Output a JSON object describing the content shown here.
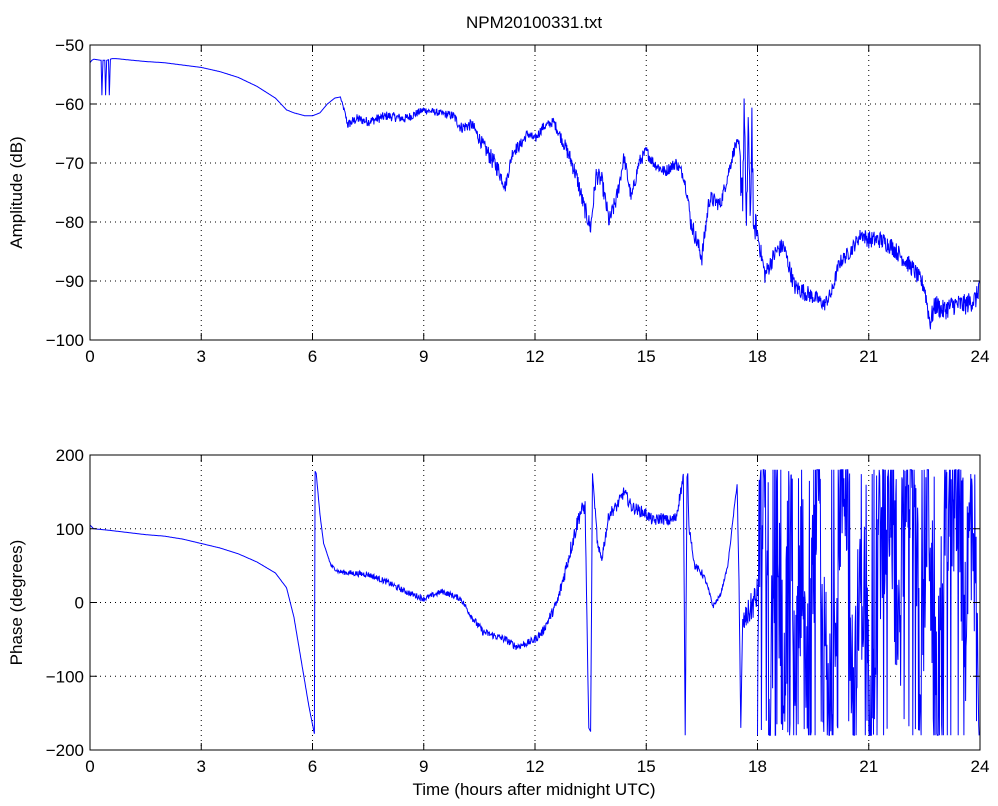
{
  "title": "NPM20100331.txt",
  "colors": {
    "line": "#0000ff",
    "axis": "#000000",
    "grid": "#000000",
    "background": "#ffffff"
  },
  "chart_data": [
    {
      "type": "line",
      "title": "NPM20100331.txt",
      "xlabel": "",
      "ylabel": "Amplitude (dB)",
      "xlim": [
        0,
        24
      ],
      "ylim": [
        -100,
        -50
      ],
      "xticks": [
        0,
        3,
        6,
        9,
        12,
        15,
        18,
        21,
        24
      ],
      "yticks": [
        -100,
        -90,
        -80,
        -70,
        -60,
        -50
      ],
      "xticklabels": [
        "0",
        "3",
        "6",
        "9",
        "12",
        "15",
        "18",
        "21",
        "24"
      ],
      "yticklabels": [
        "−100",
        "−90",
        "−80",
        "−70",
        "−60",
        "−50"
      ],
      "grid": true,
      "series": [
        {
          "color": "#0000ff",
          "x": [
            0,
            0.05,
            0.1,
            0.2,
            0.3,
            0.32,
            0.35,
            0.4,
            0.42,
            0.45,
            0.5,
            0.52,
            0.55,
            0.6,
            0.7,
            1.0,
            1.5,
            2.0,
            2.5,
            3.0,
            3.5,
            4.0,
            4.5,
            5.0,
            5.3,
            5.5,
            5.8,
            6.0,
            6.2,
            6.4,
            6.6,
            6.75,
            6.85,
            6.95,
            7.2,
            7.5,
            8.0,
            8.5,
            9.0,
            9.4,
            9.8,
            10.0,
            10.3,
            10.6,
            10.8,
            11.0,
            11.2,
            11.4,
            11.6,
            11.8,
            12.0,
            12.2,
            12.5,
            12.8,
            13.0,
            13.15,
            13.3,
            13.5,
            13.65,
            13.8,
            14.0,
            14.2,
            14.4,
            14.6,
            14.8,
            15.0,
            15.2,
            15.5,
            15.8,
            16.0,
            16.1,
            16.2,
            16.3,
            16.5,
            16.7,
            17.0,
            17.2,
            17.4,
            17.5,
            17.55,
            17.6,
            17.65,
            17.7,
            17.75,
            17.8,
            17.85,
            17.9,
            17.95,
            18.0,
            18.2,
            18.5,
            18.7,
            19.0,
            19.3,
            19.6,
            19.8,
            20.0,
            20.2,
            20.5,
            20.8,
            21.0,
            21.3,
            21.6,
            21.9,
            22.2,
            22.5,
            22.65,
            22.8,
            23.0,
            23.3,
            23.6,
            23.9,
            24.0
          ],
          "y": [
            -53,
            -52.6,
            -52.4,
            -52.5,
            -52.6,
            -58.5,
            -52.6,
            -52.6,
            -58.5,
            -52.6,
            -52.5,
            -58.5,
            -52.4,
            -52.3,
            -52.3,
            -52.5,
            -52.8,
            -53,
            -53.4,
            -53.8,
            -54.5,
            -55.5,
            -57,
            -59,
            -61,
            -61.5,
            -62,
            -62,
            -61.5,
            -60,
            -59,
            -58.8,
            -61,
            -63.5,
            -62.5,
            -63,
            -62,
            -62.5,
            -61,
            -61.5,
            -62,
            -64,
            -63.5,
            -67,
            -69,
            -71,
            -74,
            -68,
            -67,
            -65,
            -66,
            -64,
            -63,
            -67,
            -70,
            -73,
            -77,
            -81,
            -72,
            -73,
            -80,
            -76,
            -69,
            -76,
            -70,
            -68,
            -70,
            -71.5,
            -70,
            -72,
            -75,
            -80,
            -82,
            -86,
            -76,
            -77,
            -72,
            -67,
            -67,
            -72,
            -74,
            -60,
            -85,
            -61,
            -82,
            -62,
            -84,
            -80,
            -82,
            -89,
            -85,
            -84,
            -91,
            -92,
            -93,
            -94,
            -92,
            -87,
            -85,
            -82,
            -83,
            -83,
            -84,
            -86,
            -88,
            -91,
            -97,
            -94,
            -95,
            -94,
            -94,
            -93,
            -90
          ],
          "noise": [
            0,
            0,
            0,
            0,
            0,
            0,
            0,
            0,
            0,
            0,
            0,
            0,
            0,
            0,
            0,
            0,
            0,
            0,
            0,
            0,
            0,
            0,
            0,
            0,
            0,
            0,
            0,
            0,
            0,
            0,
            0,
            0,
            0.5,
            0.8,
            0.8,
            0.8,
            0.8,
            0.8,
            0.6,
            0.6,
            0.8,
            1.0,
            1.0,
            1.2,
            1.5,
            1.5,
            1.0,
            1.0,
            1.0,
            0.8,
            0.8,
            0.8,
            0.8,
            1.2,
            1.5,
            1.5,
            1.5,
            1.5,
            1.5,
            1.5,
            1.5,
            1.5,
            1.2,
            1.2,
            1.2,
            1.0,
            1.0,
            1.0,
            1.0,
            1.0,
            1.2,
            1.5,
            1.5,
            1.5,
            1.5,
            1.2,
            1.2,
            1.0,
            1.0,
            4.0,
            5.0,
            5.0,
            5.0,
            5.0,
            5.0,
            5.0,
            3.0,
            2.0,
            1.5,
            1.5,
            1.5,
            1.5,
            1.5,
            1.5,
            1.2,
            1.2,
            1.2,
            1.2,
            1.2,
            1.2,
            1.5,
            1.5,
            1.5,
            1.5,
            1.5,
            1.5,
            1.8,
            1.8,
            1.8,
            1.8,
            1.8,
            1.8,
            1.8
          ]
        }
      ]
    },
    {
      "type": "line",
      "title": "",
      "xlabel": "Time (hours after midnight UTC)",
      "ylabel": "Phase (degrees)",
      "xlim": [
        0,
        24
      ],
      "ylim": [
        -200,
        200
      ],
      "xticks": [
        0,
        3,
        6,
        9,
        12,
        15,
        18,
        21,
        24
      ],
      "yticks": [
        -200,
        -100,
        0,
        100,
        200
      ],
      "xticklabels": [
        "0",
        "3",
        "6",
        "9",
        "12",
        "15",
        "18",
        "21",
        "24"
      ],
      "yticklabels": [
        "−200",
        "−100",
        "0",
        "100",
        "200"
      ],
      "grid": true,
      "series": [
        {
          "color": "#0000ff",
          "x": [
            0,
            0.1,
            0.5,
            1.0,
            1.5,
            2.0,
            2.5,
            3.0,
            3.5,
            4.0,
            4.5,
            5.0,
            5.3,
            5.5,
            5.7,
            5.9,
            6.05,
            6.07,
            6.1,
            6.2,
            6.3,
            6.5,
            6.7,
            7.0,
            7.5,
            8.0,
            8.5,
            9.0,
            9.5,
            10.0,
            10.3,
            10.6,
            10.9,
            11.2,
            11.5,
            11.8,
            12.0,
            12.2,
            12.4,
            12.6,
            12.8,
            13.0,
            13.2,
            13.35,
            13.45,
            13.5,
            13.55,
            13.7,
            13.8,
            14.0,
            14.2,
            14.4,
            14.6,
            14.8,
            15.0,
            15.2,
            15.4,
            15.6,
            15.8,
            16.0,
            16.05,
            16.1,
            16.12,
            16.15,
            16.2,
            16.3,
            16.5,
            16.6,
            16.8,
            17.0,
            17.2,
            17.4,
            17.45,
            17.5,
            17.55,
            17.6,
            17.8,
            18.0
          ],
          "y": [
            105,
            100,
            98,
            95,
            92,
            90,
            86,
            80,
            74,
            66,
            55,
            40,
            20,
            -20,
            -80,
            -140,
            -178,
            178,
            175,
            120,
            80,
            50,
            42,
            40,
            38,
            28,
            15,
            5,
            15,
            5,
            -20,
            -40,
            -45,
            -50,
            -60,
            -55,
            -50,
            -40,
            -20,
            0,
            40,
            80,
            120,
            130,
            -170,
            -175,
            175,
            70,
            60,
            120,
            130,
            150,
            130,
            125,
            120,
            110,
            115,
            110,
            115,
            170,
            -180,
            170,
            175,
            100,
            90,
            50,
            40,
            30,
            -5,
            10,
            50,
            140,
            160,
            30,
            -170,
            -30,
            -10,
            10
          ],
          "noise": [
            0,
            0,
            0,
            0,
            0,
            0,
            0,
            0,
            0,
            0,
            0,
            0,
            0,
            0,
            0,
            0,
            0,
            0,
            0,
            0,
            0,
            2,
            3,
            4,
            4,
            4,
            4,
            4,
            4,
            4,
            5,
            5,
            5,
            5,
            5,
            5,
            5,
            6,
            6,
            8,
            10,
            12,
            12,
            10,
            0,
            0,
            0,
            10,
            8,
            8,
            8,
            8,
            8,
            8,
            8,
            8,
            8,
            8,
            8,
            8,
            0,
            0,
            0,
            5,
            5,
            5,
            5,
            4,
            4,
            2,
            2,
            2,
            2,
            0,
            0,
            15,
            20,
            25
          ]
        },
        {
          "color": "#0000ff",
          "style": "wrapped",
          "x": [
            18.0,
            18.2,
            18.3,
            18.5,
            18.7,
            18.9,
            19.0,
            19.2,
            19.4,
            19.6,
            19.8,
            20.0,
            20.2,
            20.4,
            20.6,
            20.8,
            21.0,
            21.2,
            21.4,
            21.6,
            21.8,
            22.0,
            22.2,
            22.4,
            22.6,
            22.8,
            23.0,
            23.2,
            23.4,
            23.6,
            23.8,
            24.0
          ],
          "y": [
            -40,
            178,
            -178,
            160,
            -150,
            170,
            -160,
            100,
            -120,
            178,
            -90,
            -130,
            150,
            178,
            -178,
            60,
            -100,
            -20,
            100,
            178,
            -60,
            178,
            160,
            -100,
            178,
            -150,
            0,
            140,
            178,
            -20,
            160,
            -178
          ],
          "noise": [
            60,
            60,
            60,
            60,
            60,
            60,
            60,
            60,
            60,
            60,
            60,
            60,
            60,
            60,
            60,
            60,
            60,
            60,
            60,
            60,
            60,
            60,
            60,
            60,
            60,
            60,
            60,
            60,
            60,
            60,
            60,
            60
          ]
        }
      ]
    }
  ]
}
